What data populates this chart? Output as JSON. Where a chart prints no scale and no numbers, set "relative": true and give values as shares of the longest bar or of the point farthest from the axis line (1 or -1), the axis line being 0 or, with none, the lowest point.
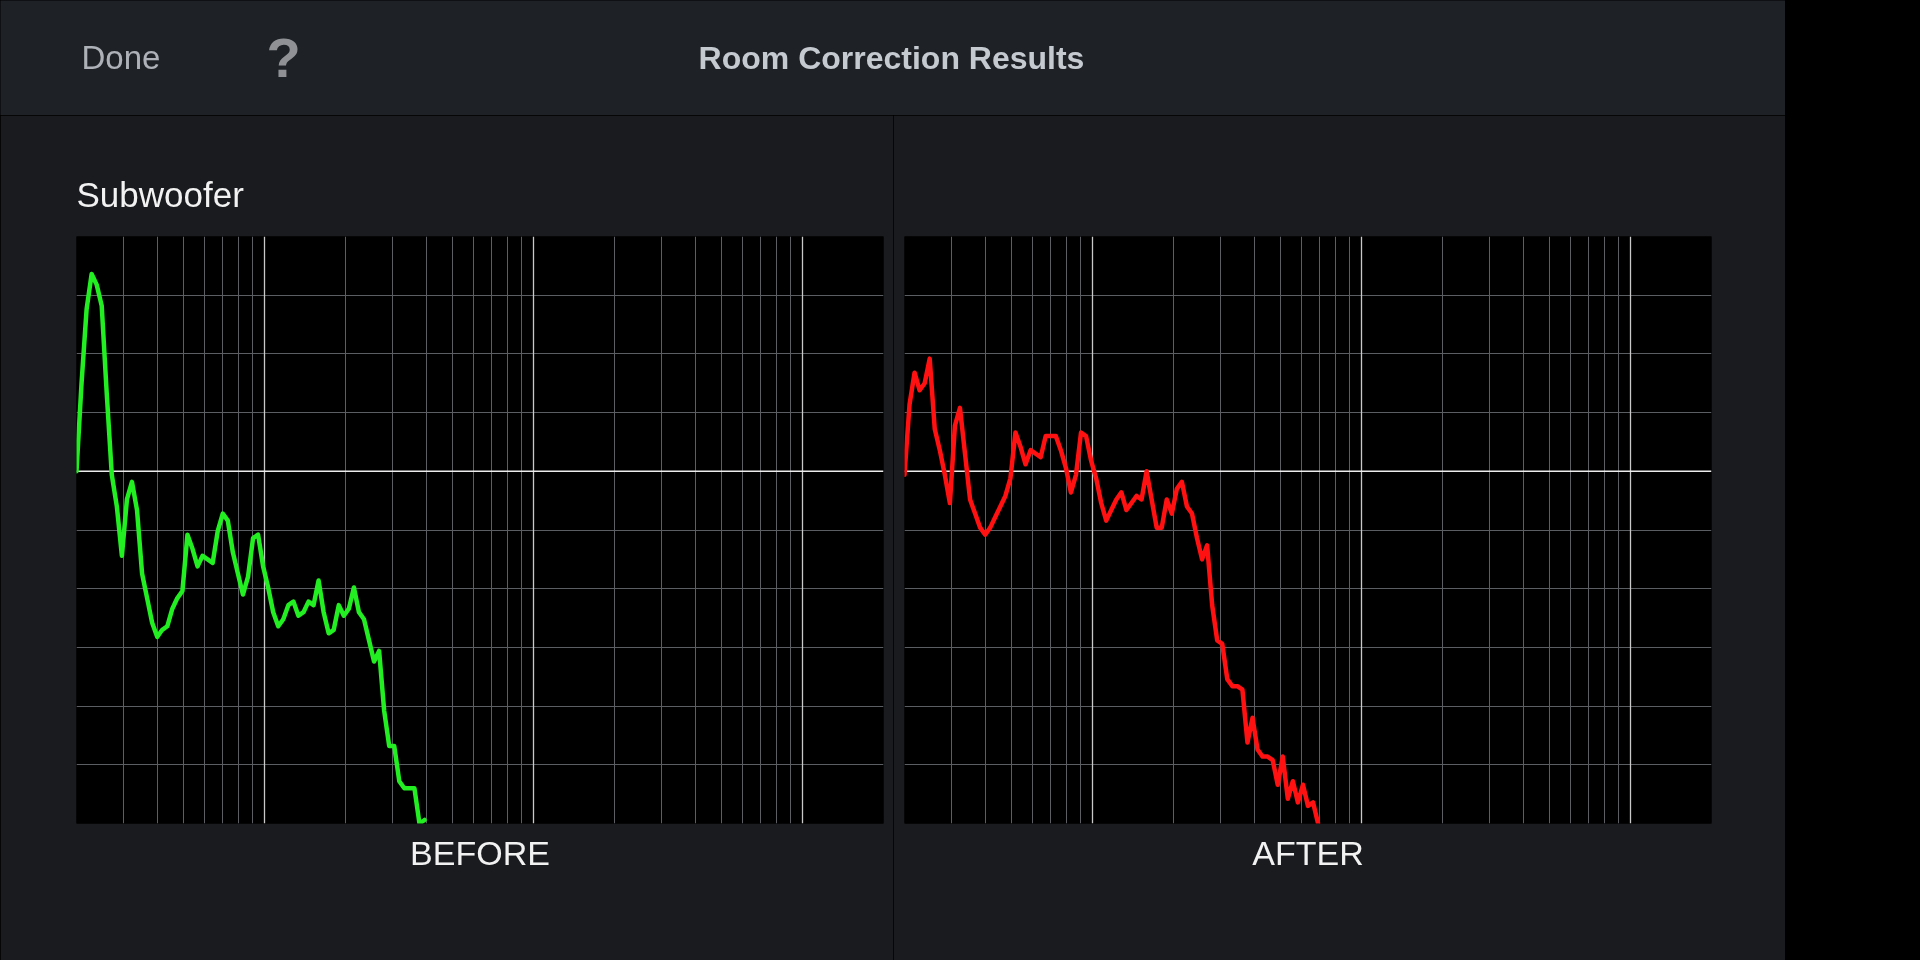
{
  "chart_data": [
    {
      "type": "line",
      "title": "Room Correction Results",
      "subtitle": "Subwoofer",
      "annotations": [
        "Done",
        "?"
      ],
      "xlabel": "BEFORE",
      "relative": true,
      "grid": true,
      "categories": [
        null,
        null,
        null,
        null,
        null,
        null,
        null,
        null,
        null,
        null,
        null,
        null,
        null,
        null,
        null,
        null,
        null,
        null,
        null,
        null,
        null,
        null,
        null,
        null,
        null,
        null,
        null,
        null,
        null,
        null,
        null,
        null,
        null,
        null,
        null,
        null,
        null,
        null,
        null,
        null,
        null,
        null,
        null,
        null,
        null,
        null,
        null,
        null,
        null,
        null,
        null,
        null,
        null,
        null,
        null,
        null,
        null,
        null,
        null,
        null,
        null,
        null,
        null,
        null,
        null,
        null,
        null,
        null,
        null,
        null,
        null,
        null,
        null,
        null,
        null,
        null,
        null,
        null,
        null,
        null,
        null,
        null,
        null,
        null,
        null,
        null,
        null,
        null,
        null,
        null,
        null,
        null,
        null,
        null,
        null,
        null,
        null,
        null,
        null,
        null,
        null,
        null,
        null,
        null,
        null,
        null,
        null,
        null,
        null,
        null,
        null,
        null,
        null,
        null,
        null,
        null,
        null,
        null,
        null,
        null,
        null,
        null,
        null,
        null,
        null,
        null,
        null,
        null,
        null,
        null,
        null,
        null,
        null,
        null,
        null,
        null,
        null,
        null,
        null,
        null,
        null,
        null,
        null,
        null,
        null,
        null,
        null,
        null,
        null,
        null,
        null,
        null,
        null,
        null,
        null,
        null,
        null,
        null,
        null,
        null,
        null
      ],
      "series": [
        {
          "color": "#22ee22",
          "values": [
            0,
            0.25,
            0.46,
            0.56,
            0.53,
            0.47,
            0.22,
            -0.01,
            -0.1,
            -0.24,
            -0.08,
            -0.03,
            -0.11,
            -0.29,
            -0.36,
            -0.43,
            -0.47,
            -0.45,
            -0.44,
            -0.39,
            -0.36,
            -0.34,
            -0.18,
            -0.22,
            -0.27,
            -0.24,
            -0.25,
            -0.26,
            -0.17,
            -0.12,
            -0.14,
            -0.23,
            -0.29,
            -0.35,
            -0.3,
            -0.19,
            -0.18,
            -0.27,
            -0.33,
            -0.4,
            -0.44,
            -0.42,
            -0.38,
            -0.37,
            -0.41,
            -0.4,
            -0.37,
            -0.38,
            -0.31,
            -0.4,
            -0.46,
            -0.45,
            -0.38,
            -0.41,
            -0.39,
            -0.33,
            -0.4,
            -0.42,
            -0.48,
            -0.54,
            -0.51,
            -0.68,
            -0.78,
            -0.78,
            -0.88,
            -0.9,
            -0.9,
            -0.9,
            -1,
            -0.99,
            null,
            null,
            null,
            null,
            null,
            null,
            null,
            null,
            null,
            null,
            null,
            null,
            null,
            null,
            null,
            null,
            null,
            null,
            null,
            null,
            null,
            null,
            null,
            null,
            null,
            null,
            null,
            null,
            null,
            null,
            null,
            null,
            null,
            null,
            null,
            null,
            null,
            null,
            null,
            null,
            null,
            null,
            null,
            null,
            null,
            null,
            null,
            null,
            null,
            null,
            null,
            null,
            null,
            null,
            null,
            null,
            null,
            null,
            null,
            null,
            null,
            null,
            null,
            null,
            null,
            null,
            null,
            null,
            null,
            null,
            null,
            null,
            null,
            null,
            null,
            null,
            null,
            null,
            null,
            null,
            null,
            null,
            null,
            null,
            null,
            null,
            null,
            null,
            null,
            null,
            null
          ]
        }
      ]
    },
    {
      "type": "line",
      "xlabel": "AFTER",
      "relative": true,
      "grid": true,
      "categories": [
        null,
        null,
        null,
        null,
        null,
        null,
        null,
        null,
        null,
        null,
        null,
        null,
        null,
        null,
        null,
        null,
        null,
        null,
        null,
        null,
        null,
        null,
        null,
        null,
        null,
        null,
        null,
        null,
        null,
        null,
        null,
        null,
        null,
        null,
        null,
        null,
        null,
        null,
        null,
        null,
        null,
        null,
        null,
        null,
        null,
        null,
        null,
        null,
        null,
        null,
        null,
        null,
        null,
        null,
        null,
        null,
        null,
        null,
        null,
        null,
        null,
        null,
        null,
        null,
        null,
        null,
        null,
        null,
        null,
        null,
        null,
        null,
        null,
        null,
        null,
        null,
        null,
        null,
        null,
        null,
        null,
        null,
        null,
        null,
        null,
        null,
        null,
        null,
        null,
        null,
        null,
        null,
        null,
        null,
        null,
        null,
        null,
        null,
        null,
        null,
        null,
        null,
        null,
        null,
        null,
        null,
        null,
        null,
        null,
        null,
        null,
        null,
        null,
        null,
        null,
        null,
        null,
        null,
        null,
        null,
        null,
        null,
        null,
        null,
        null,
        null,
        null,
        null,
        null,
        null,
        null,
        null,
        null,
        null,
        null,
        null,
        null,
        null,
        null,
        null,
        null,
        null,
        null,
        null,
        null,
        null,
        null,
        null,
        null,
        null,
        null,
        null,
        null,
        null,
        null,
        null,
        null,
        null,
        null,
        null,
        null
      ],
      "series": [
        {
          "color": "#ff1111",
          "values": [
            -0.01,
            0.19,
            0.28,
            0.23,
            0.25,
            0.32,
            0.12,
            0.06,
            -0.01,
            -0.09,
            0.13,
            0.18,
            0.05,
            -0.08,
            -0.12,
            -0.16,
            -0.18,
            -0.16,
            -0.13,
            -0.1,
            -0.07,
            -0.02,
            0.11,
            0.07,
            0.02,
            0.06,
            0.05,
            0.04,
            0.1,
            0.1,
            0.1,
            0.06,
            0.01,
            -0.06,
            -0.01,
            0.11,
            0.1,
            0.03,
            -0.02,
            -0.09,
            -0.14,
            -0.11,
            -0.08,
            -0.06,
            -0.11,
            -0.09,
            -0.07,
            -0.08,
            0,
            -0.08,
            -0.16,
            -0.16,
            -0.08,
            -0.12,
            -0.05,
            -0.03,
            -0.1,
            -0.12,
            -0.19,
            -0.25,
            -0.21,
            -0.38,
            -0.48,
            -0.49,
            -0.59,
            -0.61,
            -0.61,
            -0.62,
            -0.77,
            -0.7,
            -0.79,
            -0.81,
            -0.81,
            -0.82,
            -0.89,
            -0.81,
            -0.93,
            -0.88,
            -0.94,
            -0.89,
            -0.95,
            -0.94,
            -1,
            null,
            null,
            null,
            null,
            null,
            null,
            null,
            null,
            null,
            null,
            null,
            null,
            null,
            null,
            null,
            null,
            null,
            null,
            null,
            null,
            null,
            null,
            null,
            null,
            null,
            null,
            null,
            null,
            null,
            null,
            null,
            null,
            null,
            null,
            null,
            null,
            null,
            null,
            null,
            null,
            null,
            null,
            null,
            null,
            null,
            null,
            null,
            null,
            null,
            null,
            null,
            null,
            null,
            null,
            null,
            null,
            null,
            null,
            null,
            null,
            null,
            null,
            null,
            null,
            null,
            null,
            null,
            null,
            null,
            null,
            null,
            null,
            null,
            null,
            null,
            null,
            null,
            null
          ]
        }
      ]
    }
  ]
}
